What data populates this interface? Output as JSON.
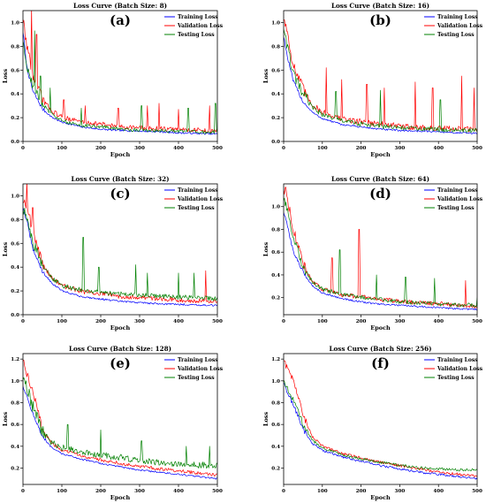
{
  "series_names": [
    "Training Loss",
    "Validation Loss",
    "Testing Loss"
  ],
  "colors": {
    "training": "#0000ff",
    "validation": "#ff0000",
    "testing": "#008000"
  },
  "xlabel": "Epoch",
  "ylabel": "Loss",
  "chart_data": [
    {
      "type": "line",
      "panel_label": "(a)",
      "title": "Loss Curve (Batch Size: 8)",
      "xlabel": "Epoch",
      "ylabel": "Loss",
      "xlim": [
        0,
        500
      ],
      "ylim": [
        0,
        1.1
      ],
      "xticks": [
        0,
        100,
        200,
        300,
        400,
        500
      ],
      "yticks": [
        0.0,
        0.2,
        0.4,
        0.6,
        0.8,
        1.0
      ],
      "legend": "top-right",
      "grid": false,
      "series": [
        {
          "name": "Training Loss",
          "color": "#0000ff",
          "x": [
            0,
            10,
            25,
            50,
            75,
            100,
            150,
            200,
            250,
            300,
            350,
            400,
            450,
            500
          ],
          "values": [
            0.92,
            0.62,
            0.42,
            0.27,
            0.2,
            0.16,
            0.12,
            0.1,
            0.09,
            0.085,
            0.08,
            0.07,
            0.065,
            0.06
          ],
          "noise": 0.015
        },
        {
          "name": "Validation Loss",
          "color": "#ff0000",
          "x": [
            0,
            10,
            25,
            50,
            75,
            100,
            150,
            200,
            250,
            300,
            350,
            400,
            450,
            500
          ],
          "values": [
            1.0,
            0.8,
            0.55,
            0.34,
            0.25,
            0.2,
            0.16,
            0.14,
            0.12,
            0.11,
            0.1,
            0.095,
            0.09,
            0.08
          ],
          "noise": 0.04,
          "spikes": [
            [
              2,
              1.02
            ],
            [
              22,
              1.12
            ],
            [
              35,
              0.9
            ],
            [
              105,
              0.35
            ],
            [
              160,
              0.3
            ],
            [
              245,
              0.28
            ],
            [
              320,
              0.3
            ],
            [
              350,
              0.32
            ],
            [
              400,
              0.27
            ],
            [
              480,
              0.3
            ]
          ]
        },
        {
          "name": "Testing Loss",
          "color": "#008000",
          "x": [
            0,
            10,
            25,
            50,
            75,
            100,
            150,
            200,
            250,
            300,
            350,
            400,
            450,
            500
          ],
          "values": [
            0.85,
            0.62,
            0.46,
            0.3,
            0.22,
            0.17,
            0.13,
            0.12,
            0.1,
            0.09,
            0.085,
            0.08,
            0.075,
            0.07
          ],
          "noise": 0.03,
          "spikes": [
            [
              30,
              0.93
            ],
            [
              45,
              0.55
            ],
            [
              70,
              0.45
            ],
            [
              150,
              0.28
            ],
            [
              305,
              0.3
            ],
            [
              425,
              0.28
            ],
            [
              495,
              0.32
            ]
          ]
        }
      ]
    },
    {
      "type": "line",
      "panel_label": "(b)",
      "title": "Loss Curve (Batch Size: 16)",
      "xlabel": "Epoch",
      "ylabel": "Loss",
      "xlim": [
        0,
        500
      ],
      "ylim": [
        0,
        1.1
      ],
      "xticks": [
        0,
        100,
        200,
        300,
        400,
        500
      ],
      "yticks": [
        0.0,
        0.2,
        0.4,
        0.6,
        0.8,
        1.0
      ],
      "legend": "top-right",
      "grid": false,
      "series": [
        {
          "name": "Training Loss",
          "color": "#0000ff",
          "x": [
            0,
            10,
            25,
            50,
            75,
            100,
            150,
            200,
            250,
            300,
            350,
            400,
            450,
            500
          ],
          "values": [
            0.88,
            0.7,
            0.5,
            0.33,
            0.24,
            0.19,
            0.14,
            0.12,
            0.1,
            0.09,
            0.085,
            0.08,
            0.07,
            0.065
          ],
          "noise": 0.015
        },
        {
          "name": "Validation Loss",
          "color": "#ff0000",
          "x": [
            0,
            10,
            25,
            50,
            75,
            100,
            150,
            200,
            250,
            300,
            350,
            400,
            450,
            500
          ],
          "values": [
            1.03,
            0.9,
            0.62,
            0.42,
            0.3,
            0.24,
            0.18,
            0.16,
            0.14,
            0.12,
            0.11,
            0.1,
            0.1,
            0.09
          ],
          "noise": 0.05,
          "spikes": [
            [
              110,
              0.62
            ],
            [
              150,
              0.52
            ],
            [
              215,
              0.48
            ],
            [
              260,
              0.45
            ],
            [
              340,
              0.5
            ],
            [
              385,
              0.45
            ],
            [
              460,
              0.55
            ],
            [
              492,
              0.45
            ]
          ]
        },
        {
          "name": "Testing Loss",
          "color": "#008000",
          "x": [
            0,
            10,
            25,
            50,
            75,
            100,
            150,
            200,
            250,
            300,
            350,
            400,
            450,
            500
          ],
          "values": [
            0.95,
            0.78,
            0.55,
            0.38,
            0.28,
            0.22,
            0.17,
            0.14,
            0.12,
            0.11,
            0.1,
            0.095,
            0.09,
            0.085
          ],
          "noise": 0.04,
          "spikes": [
            [
              60,
              0.4
            ],
            [
              135,
              0.42
            ],
            [
              250,
              0.43
            ],
            [
              405,
              0.35
            ]
          ]
        }
      ]
    },
    {
      "type": "line",
      "panel_label": "(c)",
      "title": "Loss Curve (Batch Size: 32)",
      "xlabel": "Epoch",
      "ylabel": "Loss",
      "xlim": [
        0,
        500
      ],
      "ylim": [
        0,
        1.1
      ],
      "xticks": [
        0,
        100,
        200,
        300,
        400,
        500
      ],
      "yticks": [
        0.0,
        0.2,
        0.4,
        0.6,
        0.8,
        1.0
      ],
      "legend": "top-right",
      "grid": false,
      "series": [
        {
          "name": "Training Loss",
          "color": "#0000ff",
          "x": [
            0,
            10,
            25,
            50,
            75,
            100,
            150,
            200,
            250,
            300,
            350,
            400,
            450,
            500
          ],
          "values": [
            0.9,
            0.78,
            0.55,
            0.36,
            0.26,
            0.2,
            0.15,
            0.13,
            0.11,
            0.1,
            0.09,
            0.085,
            0.08,
            0.075
          ],
          "noise": 0.015
        },
        {
          "name": "Validation Loss",
          "color": "#ff0000",
          "x": [
            0,
            10,
            25,
            50,
            75,
            100,
            150,
            200,
            250,
            300,
            350,
            400,
            450,
            500
          ],
          "values": [
            0.95,
            0.92,
            0.68,
            0.42,
            0.3,
            0.24,
            0.19,
            0.17,
            0.15,
            0.14,
            0.13,
            0.12,
            0.11,
            0.1
          ],
          "noise": 0.04,
          "spikes": [
            [
              10,
              1.12
            ],
            [
              25,
              0.9
            ],
            [
              470,
              0.37
            ]
          ]
        },
        {
          "name": "Testing Loss",
          "color": "#008000",
          "x": [
            0,
            10,
            25,
            50,
            75,
            100,
            150,
            200,
            250,
            300,
            350,
            400,
            450,
            500
          ],
          "values": [
            0.88,
            0.8,
            0.6,
            0.4,
            0.3,
            0.24,
            0.2,
            0.18,
            0.17,
            0.16,
            0.15,
            0.14,
            0.14,
            0.13
          ],
          "noise": 0.04,
          "spikes": [
            [
              155,
              0.65
            ],
            [
              195,
              0.4
            ],
            [
              290,
              0.42
            ],
            [
              320,
              0.35
            ],
            [
              400,
              0.35
            ],
            [
              440,
              0.35
            ]
          ]
        }
      ]
    },
    {
      "type": "line",
      "panel_label": "(d)",
      "title": "Loss Curve (Batch Size: 64)",
      "xlabel": "Epoch",
      "ylabel": "Loss",
      "xlim": [
        0,
        500
      ],
      "ylim": [
        0.05,
        1.2
      ],
      "xticks": [
        0,
        100,
        200,
        300,
        400,
        500
      ],
      "yticks": [
        0.2,
        0.4,
        0.6,
        0.8,
        1.0
      ],
      "legend": "top-right",
      "grid": false,
      "series": [
        {
          "name": "Training Loss",
          "color": "#0000ff",
          "x": [
            0,
            10,
            25,
            50,
            75,
            100,
            150,
            200,
            250,
            300,
            350,
            400,
            450,
            500
          ],
          "values": [
            0.95,
            0.82,
            0.6,
            0.42,
            0.3,
            0.24,
            0.19,
            0.16,
            0.14,
            0.13,
            0.12,
            0.11,
            0.1,
            0.095
          ],
          "noise": 0.015
        },
        {
          "name": "Validation Loss",
          "color": "#ff0000",
          "x": [
            0,
            10,
            25,
            50,
            75,
            100,
            150,
            200,
            250,
            300,
            350,
            400,
            450,
            500
          ],
          "values": [
            1.15,
            1.05,
            0.8,
            0.48,
            0.33,
            0.27,
            0.22,
            0.2,
            0.18,
            0.16,
            0.15,
            0.14,
            0.13,
            0.12
          ],
          "noise": 0.04,
          "spikes": [
            [
              5,
              1.17
            ],
            [
              125,
              0.55
            ],
            [
              195,
              0.8
            ],
            [
              470,
              0.35
            ]
          ]
        },
        {
          "name": "Testing Loss",
          "color": "#008000",
          "x": [
            0,
            10,
            25,
            50,
            75,
            100,
            150,
            200,
            250,
            300,
            350,
            400,
            450,
            500
          ],
          "values": [
            1.05,
            0.95,
            0.72,
            0.46,
            0.33,
            0.27,
            0.22,
            0.2,
            0.18,
            0.16,
            0.15,
            0.14,
            0.13,
            0.13
          ],
          "noise": 0.035,
          "spikes": [
            [
              145,
              0.62
            ],
            [
              240,
              0.4
            ],
            [
              315,
              0.38
            ],
            [
              390,
              0.37
            ],
            [
              500,
              0.2
            ]
          ]
        }
      ]
    },
    {
      "type": "line",
      "panel_label": "(e)",
      "title": "Loss Curve (Batch Size: 128)",
      "xlabel": "Epoch",
      "ylabel": "Loss",
      "xlim": [
        0,
        500
      ],
      "ylim": [
        0.05,
        1.25
      ],
      "xticks": [
        0,
        100,
        200,
        300,
        400,
        500
      ],
      "yticks": [
        0.2,
        0.4,
        0.6,
        0.8,
        1.0,
        1.2
      ],
      "legend": "top-right",
      "grid": false,
      "series": [
        {
          "name": "Training Loss",
          "color": "#0000ff",
          "x": [
            0,
            10,
            25,
            50,
            75,
            100,
            150,
            200,
            250,
            300,
            350,
            400,
            450,
            500
          ],
          "values": [
            0.95,
            0.85,
            0.7,
            0.48,
            0.38,
            0.33,
            0.28,
            0.24,
            0.21,
            0.18,
            0.16,
            0.14,
            0.12,
            0.1
          ],
          "noise": 0.015
        },
        {
          "name": "Validation Loss",
          "color": "#ff0000",
          "x": [
            0,
            10,
            25,
            50,
            75,
            100,
            150,
            200,
            250,
            300,
            350,
            400,
            450,
            500
          ],
          "values": [
            1.18,
            1.05,
            0.9,
            0.55,
            0.42,
            0.36,
            0.31,
            0.27,
            0.24,
            0.21,
            0.19,
            0.17,
            0.15,
            0.13
          ],
          "noise": 0.03
        },
        {
          "name": "Testing Loss",
          "color": "#008000",
          "x": [
            0,
            10,
            25,
            50,
            75,
            100,
            150,
            200,
            250,
            300,
            350,
            400,
            450,
            500
          ],
          "values": [
            1.0,
            0.9,
            0.75,
            0.52,
            0.42,
            0.38,
            0.34,
            0.31,
            0.29,
            0.26,
            0.24,
            0.23,
            0.22,
            0.21
          ],
          "noise": 0.06,
          "spikes": [
            [
              115,
              0.6
            ],
            [
              200,
              0.55
            ],
            [
              305,
              0.45
            ],
            [
              420,
              0.4
            ],
            [
              480,
              0.4
            ]
          ]
        }
      ]
    },
    {
      "type": "line",
      "panel_label": "(f)",
      "title": "Loss Curve (Batch Size: 256)",
      "xlabel": "Epoch",
      "ylabel": "Loss",
      "xlim": [
        0,
        500
      ],
      "ylim": [
        0.05,
        1.25
      ],
      "xticks": [
        0,
        100,
        200,
        300,
        400,
        500
      ],
      "yticks": [
        0.2,
        0.4,
        0.6,
        0.8,
        1.0,
        1.2
      ],
      "legend": "top-right",
      "grid": false,
      "series": [
        {
          "name": "Training Loss",
          "color": "#0000ff",
          "x": [
            0,
            10,
            25,
            50,
            75,
            100,
            150,
            200,
            250,
            300,
            350,
            400,
            450,
            500
          ],
          "values": [
            0.97,
            0.88,
            0.78,
            0.55,
            0.42,
            0.36,
            0.3,
            0.26,
            0.22,
            0.19,
            0.16,
            0.14,
            0.12,
            0.1
          ],
          "noise": 0.02
        },
        {
          "name": "Validation Loss",
          "color": "#ff0000",
          "x": [
            0,
            10,
            25,
            50,
            75,
            100,
            150,
            200,
            250,
            300,
            350,
            400,
            450,
            500
          ],
          "values": [
            1.18,
            1.1,
            1.0,
            0.68,
            0.48,
            0.4,
            0.33,
            0.29,
            0.25,
            0.22,
            0.19,
            0.16,
            0.14,
            0.12
          ],
          "noise": 0.025
        },
        {
          "name": "Testing Loss",
          "color": "#008000",
          "x": [
            0,
            10,
            25,
            50,
            75,
            100,
            150,
            200,
            250,
            300,
            350,
            400,
            450,
            500
          ],
          "values": [
            1.0,
            0.92,
            0.82,
            0.6,
            0.45,
            0.38,
            0.32,
            0.28,
            0.25,
            0.22,
            0.2,
            0.19,
            0.18,
            0.18
          ],
          "noise": 0.025
        }
      ]
    }
  ]
}
